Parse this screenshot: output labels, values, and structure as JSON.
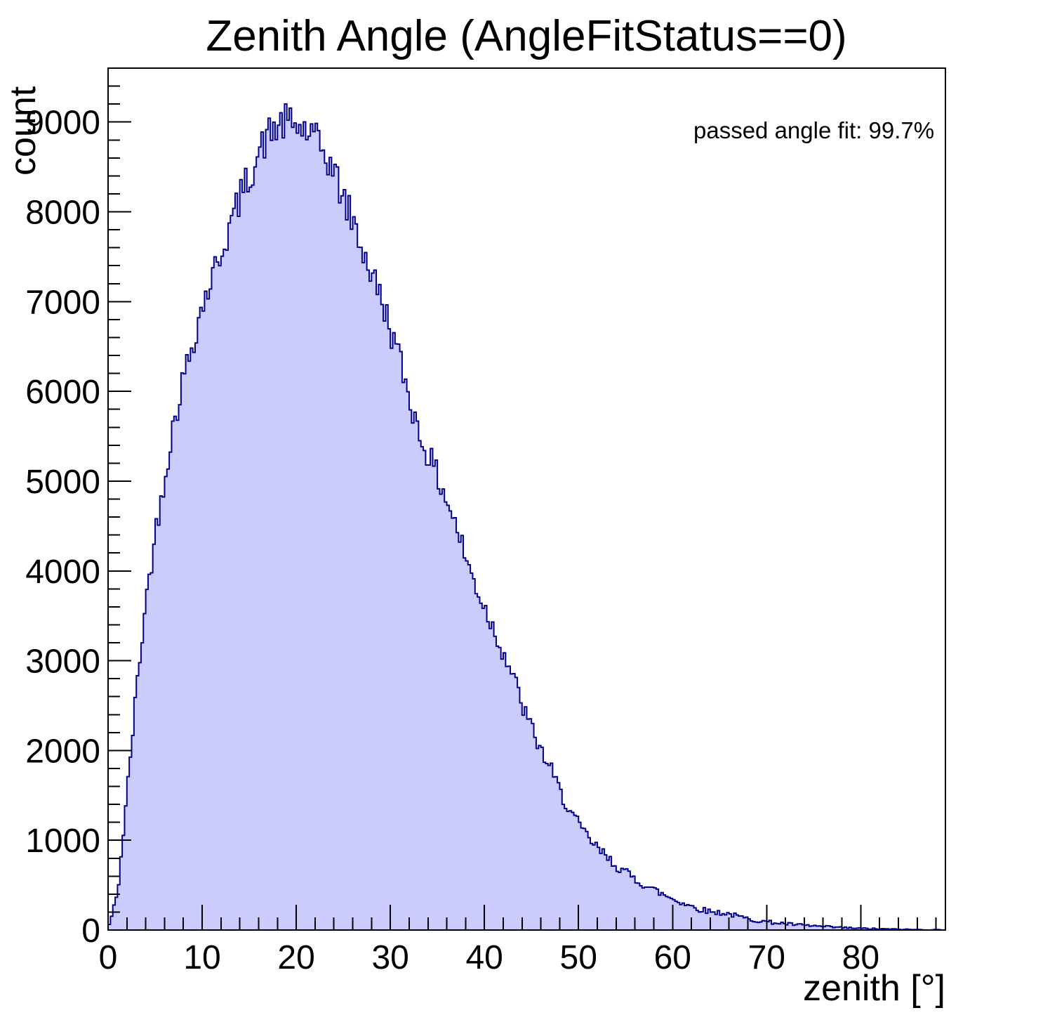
{
  "figure": {
    "title": "Zenith Angle (AngleFitStatus==0)",
    "annotation": "passed angle fit: 99.7%"
  },
  "chart_data": {
    "type": "bar",
    "subtype": "histogram",
    "title": "Zenith Angle (AngleFitStatus==0)",
    "xlabel": "zenith [°]",
    "ylabel": "count",
    "annotation": "passed angle fit: 99.7%",
    "xlim": [
      0,
      89
    ],
    "ylim": [
      0,
      9600
    ],
    "grid": false,
    "legend": "none",
    "x_major_tick_step": 10,
    "x_minor_tick_step": 2,
    "y_major_tick_step": 1000,
    "y_minor_tick_step": 200,
    "x_tick_labels": [
      "0",
      "10",
      "20",
      "30",
      "40",
      "50",
      "60",
      "70",
      "80"
    ],
    "y_tick_labels": [
      "0",
      "1000",
      "2000",
      "3000",
      "4000",
      "5000",
      "6000",
      "7000",
      "8000",
      "9000"
    ],
    "bin_width_deg": 0.25,
    "peak": {
      "zenith_deg": 19,
      "count": 9150
    },
    "envelope_degrees_step": 1,
    "envelope_counts": [
      10,
      400,
      1500,
      2650,
      3650,
      4400,
      5050,
      5650,
      6150,
      6550,
      6950,
      7250,
      7550,
      7850,
      8150,
      8400,
      8650,
      8850,
      8950,
      9000,
      8950,
      8900,
      8800,
      8650,
      8450,
      8150,
      7900,
      7600,
      7300,
      7050,
      6700,
      6350,
      5950,
      5550,
      5300,
      5050,
      4800,
      4500,
      4150,
      3850,
      3600,
      3350,
      3100,
      2850,
      2500,
      2250,
      2000,
      1800,
      1550,
      1350,
      1170,
      1030,
      910,
      810,
      720,
      640,
      570,
      505,
      450,
      395,
      350,
      305,
      265,
      230,
      205,
      195,
      180,
      150,
      125,
      105,
      92,
      80,
      70,
      60,
      52,
      45,
      38,
      32,
      27,
      22,
      18,
      15,
      12,
      10,
      8,
      6,
      5,
      4,
      3,
      2
    ],
    "noise": {
      "seed": 42,
      "sigma_factor": 2.2
    },
    "colors": {
      "fill": "#ccccfc",
      "line": "#00008b",
      "axis": "#000000",
      "text": "#000000",
      "background": "#ffffff"
    }
  }
}
